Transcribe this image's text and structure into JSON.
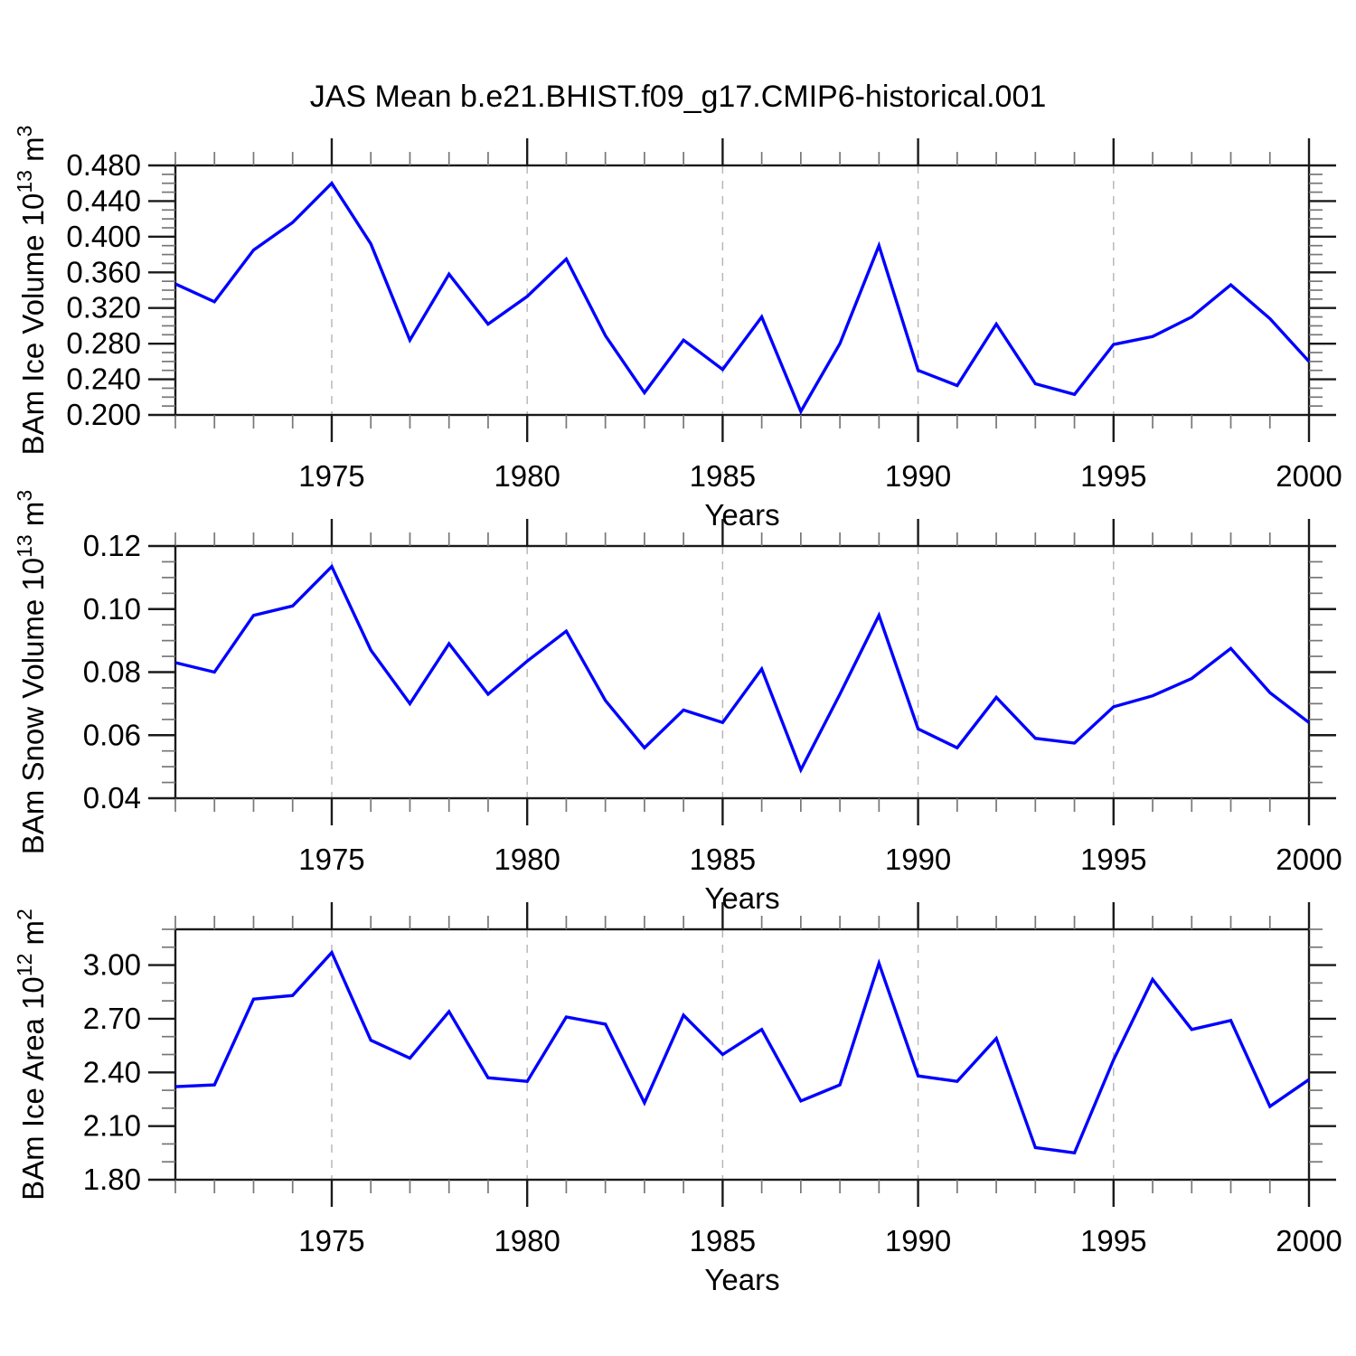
{
  "title": "JAS Mean b.e21.BHIST.f09_g17.CMIP6-historical.001",
  "colors": {
    "line": "#0000ff",
    "box": "#1a1a1a",
    "major_tick": "#1a1a1a",
    "minor_tick": "#777777",
    "gridline": "#b4b4b4",
    "text": "#000000",
    "background": "#ffffff"
  },
  "x_axis": {
    "label": "Years",
    "min": 1971,
    "max": 2000,
    "major_ticks": [
      1975,
      1980,
      1985,
      1990,
      1995,
      2000
    ],
    "tick_labels": [
      "1975",
      "1980",
      "1985",
      "1990",
      "1995",
      "2000"
    ],
    "gridline_years": [
      1975,
      1980,
      1985,
      1990,
      1995
    ],
    "minor_step": 1
  },
  "chart_data": [
    {
      "type": "line",
      "id": "bam-ice-volume",
      "ylabel_text": "BAm Ice Volume 10^13 m^3",
      "ylabel_parts": [
        {
          "t": "BAm Ice Volume 10",
          "sup": false
        },
        {
          "t": "13",
          "sup": true
        },
        {
          "t": " m",
          "sup": false
        },
        {
          "t": "3",
          "sup": true
        }
      ],
      "y_min": 0.2,
      "y_max": 0.48,
      "y_majors": [
        0.2,
        0.24,
        0.28,
        0.32,
        0.36,
        0.4,
        0.44,
        0.48
      ],
      "y_tick_labels": [
        "0.200",
        "0.240",
        "0.280",
        "0.320",
        "0.360",
        "0.400",
        "0.440",
        "0.480"
      ],
      "y_minor_step": 0.01,
      "x": [
        1971,
        1972,
        1973,
        1974,
        1975,
        1976,
        1977,
        1978,
        1979,
        1980,
        1981,
        1982,
        1983,
        1984,
        1985,
        1986,
        1987,
        1988,
        1989,
        1990,
        1991,
        1992,
        1993,
        1994,
        1995,
        1996,
        1997,
        1998,
        1999,
        2000
      ],
      "values": [
        0.347,
        0.327,
        0.385,
        0.416,
        0.46,
        0.392,
        0.284,
        0.358,
        0.302,
        0.333,
        0.375,
        0.289,
        0.225,
        0.284,
        0.251,
        0.31,
        0.204,
        0.28,
        0.39,
        0.25,
        0.233,
        0.302,
        0.235,
        0.223,
        0.279,
        0.288,
        0.31,
        0.346,
        0.308,
        0.26
      ]
    },
    {
      "type": "line",
      "id": "bam-snow-volume",
      "ylabel_text": "BAm Snow Volume 10^13 m^3",
      "ylabel_parts": [
        {
          "t": "BAm Snow Volume 10",
          "sup": false
        },
        {
          "t": "13",
          "sup": true
        },
        {
          "t": " m",
          "sup": false
        },
        {
          "t": "3",
          "sup": true
        }
      ],
      "y_min": 0.04,
      "y_max": 0.12,
      "y_majors": [
        0.04,
        0.06,
        0.08,
        0.1,
        0.12
      ],
      "y_tick_labels": [
        "0.04",
        "0.06",
        "0.08",
        "0.10",
        "0.12"
      ],
      "y_minor_step": 0.005,
      "x": [
        1971,
        1972,
        1973,
        1974,
        1975,
        1976,
        1977,
        1978,
        1979,
        1980,
        1981,
        1982,
        1983,
        1984,
        1985,
        1986,
        1987,
        1988,
        1989,
        1990,
        1991,
        1992,
        1993,
        1994,
        1995,
        1996,
        1997,
        1998,
        1999,
        2000
      ],
      "values": [
        0.083,
        0.08,
        0.098,
        0.101,
        0.1135,
        0.087,
        0.07,
        0.089,
        0.073,
        0.0835,
        0.093,
        0.071,
        0.056,
        0.068,
        0.064,
        0.081,
        0.049,
        0.073,
        0.098,
        0.062,
        0.056,
        0.072,
        0.059,
        0.0575,
        0.069,
        0.0725,
        0.078,
        0.0875,
        0.0735,
        0.064
      ]
    },
    {
      "type": "line",
      "id": "bam-ice-area",
      "ylabel_text": "BAm Ice Area 10^12 m^2",
      "ylabel_parts": [
        {
          "t": "BAm Ice Area 10",
          "sup": false
        },
        {
          "t": "12",
          "sup": true
        },
        {
          "t": " m",
          "sup": false
        },
        {
          "t": "2",
          "sup": true
        }
      ],
      "y_min": 1.8,
      "y_max": 3.2,
      "y_majors": [
        1.8,
        2.1,
        2.4,
        2.7,
        3.0
      ],
      "y_tick_labels": [
        "1.80",
        "2.10",
        "2.40",
        "2.70",
        "3.00"
      ],
      "y_minor_step": 0.1,
      "x": [
        1971,
        1972,
        1973,
        1974,
        1975,
        1976,
        1977,
        1978,
        1979,
        1980,
        1981,
        1982,
        1983,
        1984,
        1985,
        1986,
        1987,
        1988,
        1989,
        1990,
        1991,
        1992,
        1993,
        1994,
        1995,
        1996,
        1997,
        1998,
        1999,
        2000
      ],
      "values": [
        2.32,
        2.33,
        2.81,
        2.83,
        3.07,
        2.58,
        2.48,
        2.74,
        2.37,
        2.35,
        2.71,
        2.67,
        2.23,
        2.72,
        2.5,
        2.64,
        2.24,
        2.33,
        3.01,
        2.38,
        2.35,
        2.59,
        1.98,
        1.95,
        2.47,
        2.92,
        2.64,
        2.69,
        2.21,
        2.36
      ]
    }
  ]
}
